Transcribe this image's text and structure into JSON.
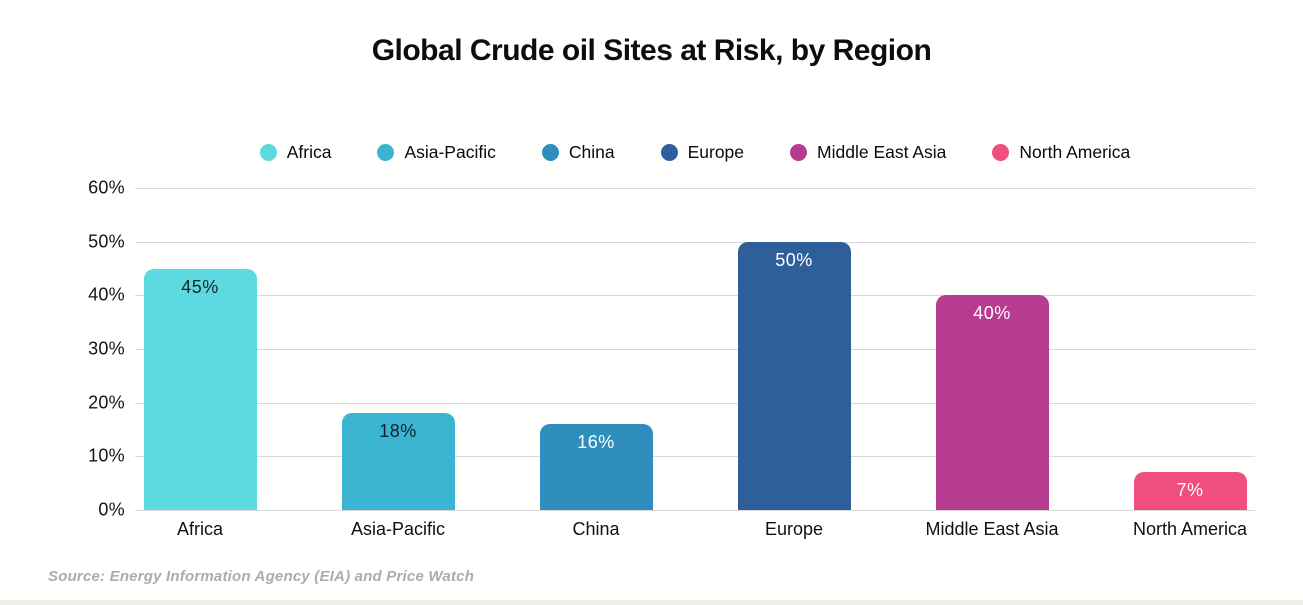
{
  "title": "Global Crude oil Sites at Risk, by Region",
  "legend": [
    {
      "label": "Africa",
      "color": "#5cdadf"
    },
    {
      "label": "Asia-Pacific",
      "color": "#3bb4d2"
    },
    {
      "label": "China",
      "color": "#2e8fbe"
    },
    {
      "label": "Europe",
      "color": "#2f5f9b"
    },
    {
      "label": "Middle East Asia",
      "color": "#b83b92"
    },
    {
      "label": "North America",
      "color": "#ef4e7e"
    }
  ],
  "chart_data": {
    "type": "bar",
    "title": "Global Crude oil Sites at Risk, by Region",
    "categories": [
      "Africa",
      "Asia-Pacific",
      "China",
      "Europe",
      "Middle East Asia",
      "North America"
    ],
    "values": [
      45,
      18,
      16,
      50,
      40,
      7
    ],
    "value_labels": [
      "45%",
      "18%",
      "16%",
      "50%",
      "40%",
      "7%"
    ],
    "bar_colors": [
      "#5cdadf",
      "#3bb4d2",
      "#2e8fbe",
      "#2f5f9b",
      "#b83b92",
      "#ef4e7e"
    ],
    "value_label_colors": [
      "#16262e",
      "#10232b",
      "#ffffff",
      "#ffffff",
      "#ffffff",
      "#ffffff"
    ],
    "xlabel": "",
    "ylabel": "",
    "ylim": [
      0,
      60
    ],
    "yticks": [
      0,
      10,
      20,
      30,
      40,
      50,
      60
    ],
    "ytick_labels": [
      "0%",
      "10%",
      "20%",
      "30%",
      "40%",
      "50%",
      "60%"
    ],
    "grid": true,
    "legend_position": "top-center",
    "gridline_color": "#d9d9d9"
  },
  "source": "Source: Energy Information Agency (EIA) and Price Watch"
}
